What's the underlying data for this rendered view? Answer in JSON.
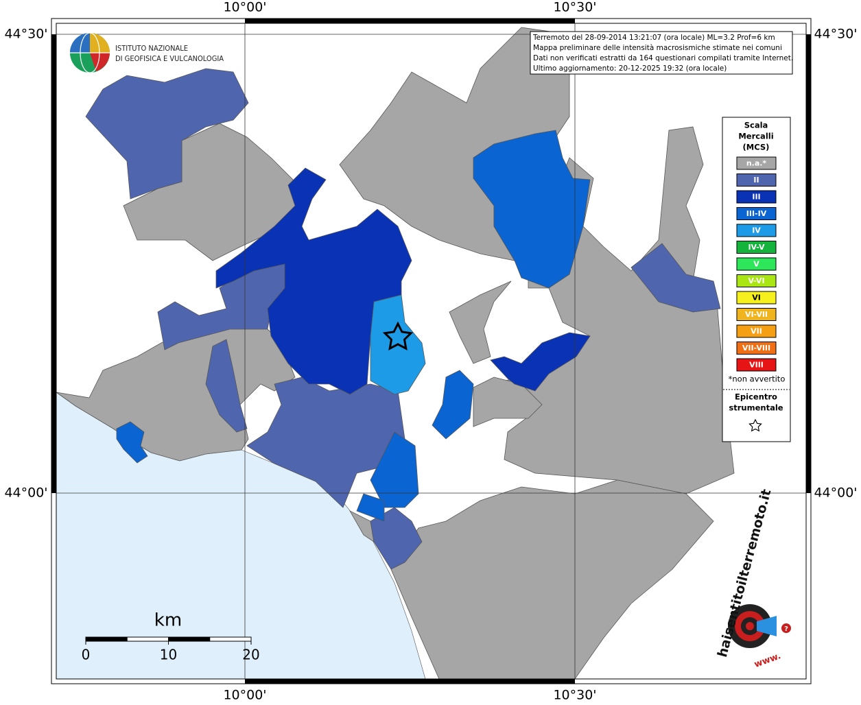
{
  "map": {
    "lon_labels": [
      "10°00'",
      "10°30'"
    ],
    "lat_labels": [
      "44°30'",
      "44°00'"
    ],
    "institute": [
      "ISTITUTO NAZIONALE",
      "DI GEOFISICA E VULCANOLOGIA"
    ],
    "info": [
      "Terremoto del 28-09-2014 13:21:07 (ora locale) ML=3.2 Prof=6 km",
      "Mappa preliminare delle intensità macrosismiche stimate nei comuni",
      "Dati non verificati estratti da 164 questionari compilati tramite Internet.",
      "Ultimo aggiornamento: 20-12-2025 19:32 (ora locale)"
    ],
    "legend": {
      "title": [
        "Scala",
        "Mercalli",
        "(MCS)"
      ],
      "items": [
        {
          "label": "n.a.*",
          "color": "#a6a6a6"
        },
        {
          "label": "II",
          "color": "#4f66ae"
        },
        {
          "label": "III",
          "color": "#0a32b4"
        },
        {
          "label": "III-IV",
          "color": "#0a64d2"
        },
        {
          "label": "IV",
          "color": "#1e9be6"
        },
        {
          "label": "IV-V",
          "color": "#14b43c"
        },
        {
          "label": "V",
          "color": "#2de65a"
        },
        {
          "label": "V-VI",
          "color": "#aae614"
        },
        {
          "label": "VI",
          "color": "#f5f01e"
        },
        {
          "label": "VI-VII",
          "color": "#f0b41e"
        },
        {
          "label": "VII",
          "color": "#f5a014"
        },
        {
          "label": "VII-VIII",
          "color": "#f06e14"
        },
        {
          "label": "VIII",
          "color": "#e61414"
        }
      ],
      "note": "*non avvertito",
      "epicenter": [
        "Epicentro",
        "strumentale"
      ]
    },
    "scale": {
      "unit": "km",
      "ticks": [
        0,
        10,
        20
      ]
    },
    "site_logo": {
      "text": "haisentitoilterremoto.it",
      "prefix": "www.",
      "mark": "?"
    }
  }
}
